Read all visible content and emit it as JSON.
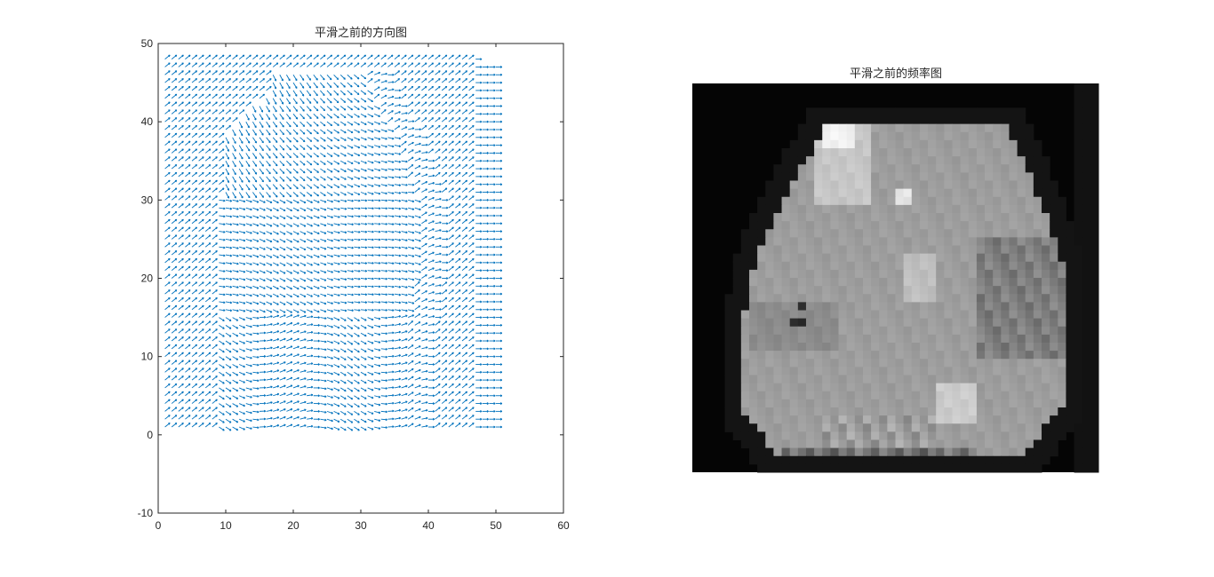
{
  "chart_data": [
    {
      "type": "quiver",
      "title": "平滑之前的方向图",
      "xlabel": "",
      "ylabel": "",
      "xlim": [
        0,
        60
      ],
      "ylim": [
        -10,
        50
      ],
      "xticks": [
        "0",
        "10",
        "20",
        "30",
        "40",
        "50",
        "60"
      ],
      "yticks": [
        "-10",
        "0",
        "10",
        "20",
        "30",
        "40",
        "50"
      ],
      "grid": false,
      "arrow_color": "#0072BD",
      "grid_step": 1,
      "x_range": [
        1,
        50
      ],
      "y_range": [
        1,
        48
      ],
      "mask_description_points": {
        "outer_region_rows_y_0_48": [
          [
            1,
            47
          ],
          [
            1,
            47
          ],
          [
            1,
            47
          ]
        ],
        "inner_blob_left_edge_by_y": [
          [
            1,
            9
          ],
          [
            10,
            9
          ],
          [
            20,
            9
          ],
          [
            30,
            9
          ],
          [
            38,
            10
          ],
          [
            42,
            14
          ],
          [
            44,
            17
          ]
        ],
        "inner_blob_right_edge_by_y": [
          [
            1,
            40
          ],
          [
            10,
            40
          ],
          [
            20,
            42
          ],
          [
            30,
            42
          ],
          [
            38,
            39
          ],
          [
            42,
            36
          ],
          [
            46,
            34
          ]
        ]
      },
      "orientation_pattern": {
        "background_angle_deg": 35,
        "right_border_angle_deg": 0,
        "inner_upper_angle_deg": -60,
        "inner_middle_angle_deg": -15,
        "inner_lower_angle_deg": -5
      }
    },
    {
      "type": "heatmap",
      "title": "平滑之前的频率图",
      "colormap": "gray",
      "grid_rows": 48,
      "grid_cols": 50,
      "background_value": 0.02,
      "border_value": 0.08,
      "right_strip_value": 0.07,
      "blob_base_value": 0.62,
      "patches": [
        {
          "value": 0.95,
          "label": "bright-top"
        },
        {
          "value": 0.9,
          "label": "bright-small"
        },
        {
          "value": 0.8,
          "label": "light"
        },
        {
          "value": 0.55,
          "label": "mid"
        },
        {
          "value": 0.45,
          "label": "mid-dark"
        },
        {
          "value": 0.2,
          "label": "dark-spot"
        }
      ]
    }
  ]
}
